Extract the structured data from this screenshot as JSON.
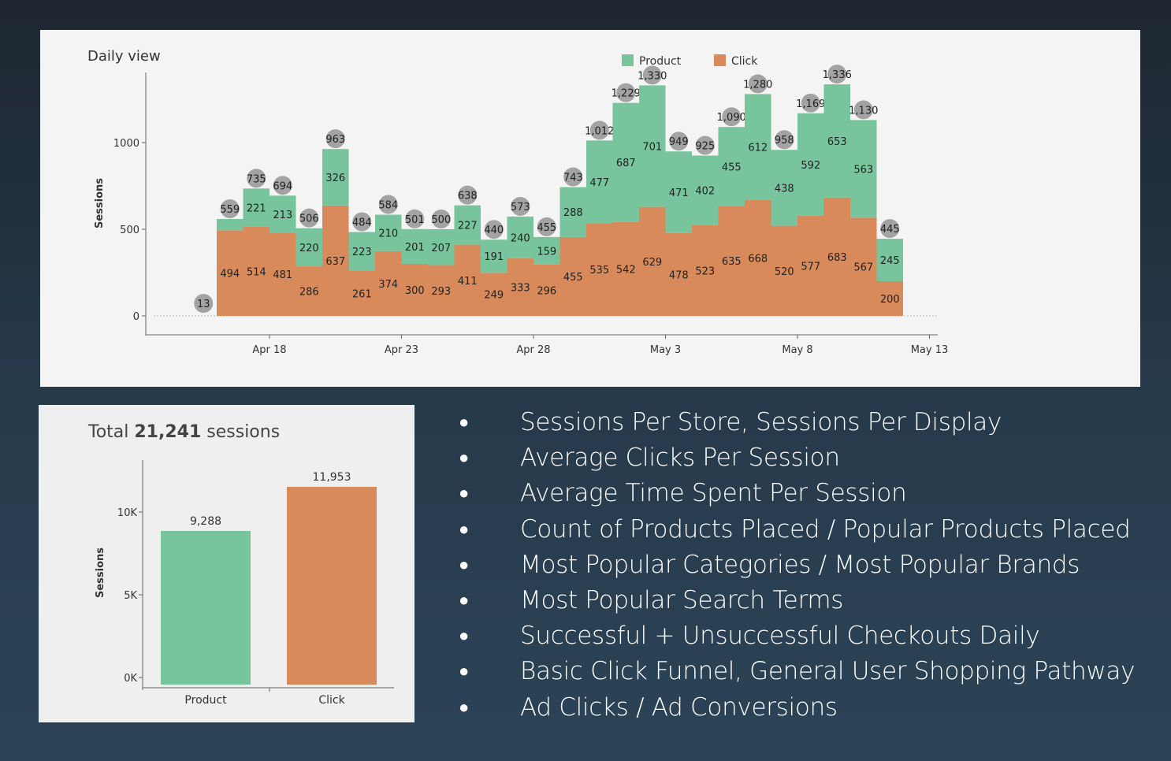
{
  "chart_data": [
    {
      "type": "bar",
      "stacked": true,
      "title": "Daily view",
      "ylabel": "Sessions",
      "xlabel": "",
      "ylim": [
        0,
        1350
      ],
      "yticks": [
        0,
        500,
        1000
      ],
      "xticks": [
        "Apr 18",
        "Apr 23",
        "Apr 28",
        "May 3",
        "May 8",
        "May 13"
      ],
      "legend": {
        "placement": "top-right",
        "entries": [
          "Product",
          "Click"
        ]
      },
      "categories": [
        "Apr 15",
        "Apr 16",
        "Apr 17",
        "Apr 18",
        "Apr 19",
        "Apr 20",
        "Apr 21",
        "Apr 22",
        "Apr 23",
        "Apr 24",
        "Apr 25",
        "Apr 26",
        "Apr 27",
        "Apr 28",
        "Apr 29",
        "Apr 30",
        "May 1",
        "May 2",
        "May 3",
        "May 4",
        "May 5",
        "May 6",
        "May 7",
        "May 8",
        "May 9",
        "May 10",
        "May 11"
      ],
      "series": [
        {
          "name": "Click",
          "color": "#d88a5a",
          "values": [
            12,
            494,
            514,
            481,
            286,
            637,
            261,
            374,
            300,
            293,
            411,
            249,
            333,
            296,
            455,
            535,
            542,
            629,
            478,
            523,
            635,
            668,
            520,
            577,
            683,
            567,
            200
          ]
        },
        {
          "name": "Product",
          "color": "#77c49d",
          "values": [
            1,
            65,
            221,
            213,
            220,
            326,
            223,
            210,
            201,
            207,
            227,
            191,
            240,
            159,
            288,
            477,
            687,
            701,
            471,
            402,
            455,
            612,
            438,
            592,
            653,
            563,
            245
          ]
        }
      ],
      "totals": [
        13,
        559,
        735,
        694,
        506,
        963,
        484,
        584,
        501,
        500,
        638,
        440,
        573,
        455,
        743,
        1012,
        1229,
        1330,
        949,
        925,
        1090,
        1280,
        958,
        1169,
        1336,
        1130,
        445
      ]
    },
    {
      "type": "bar",
      "title_prefix": "Total",
      "title_value": "21,241",
      "title_suffix": "sessions",
      "ylabel": "Sessions",
      "ylim": [
        0,
        12500
      ],
      "yticks": [
        "0K",
        "5K",
        "10K"
      ],
      "categories": [
        "Product",
        "Click"
      ],
      "values": [
        9288,
        11953
      ],
      "value_labels": [
        "9,288",
        "11,953"
      ],
      "colors": [
        "#77c49d",
        "#d88a5a"
      ]
    }
  ],
  "bullets": [
    "Sessions Per Store, Sessions Per Display",
    "Average Clicks Per Session",
    "Average Time Spent Per Session",
    "Count of Products Placed / Popular Products Placed",
    "Most Popular Categories / Most Popular Brands",
    "Most Popular Search Terms",
    "Successful + Unsuccessful Checkouts Daily",
    "Basic Click Funnel, General User Shopping Pathway",
    "Ad Clicks / Ad Conversions"
  ],
  "bullet_glyph": "●"
}
